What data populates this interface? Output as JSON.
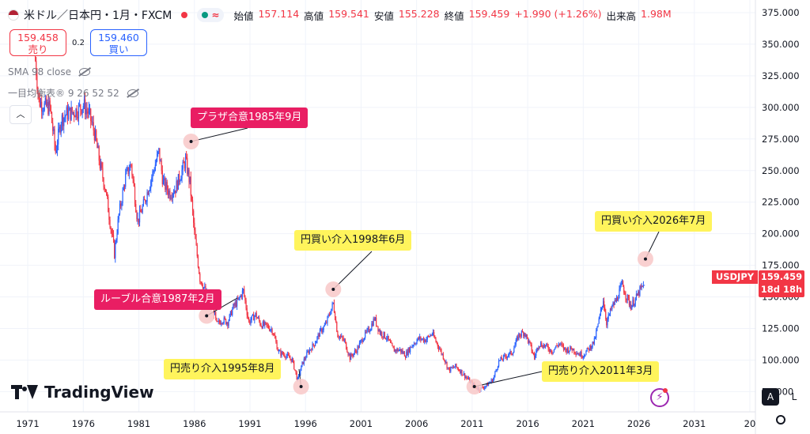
{
  "header": {
    "symbol": "米ドル／日本円・1月・FXCM",
    "ohlc": [
      {
        "label": "始値",
        "value": "157.114"
      },
      {
        "label": "高値",
        "value": "159.541"
      },
      {
        "label": "安値",
        "value": "155.228"
      },
      {
        "label": "終値",
        "value": "159.459"
      }
    ],
    "change": "+1.990 (+1.26%)",
    "volume_label": "出来高",
    "volume_value": "1.98M"
  },
  "trade": {
    "sell_price": "159.458",
    "sell_label": "売り",
    "spread": "0.2",
    "buy_price": "159.460",
    "buy_label": "買い"
  },
  "indicators": {
    "sma": "SMA 98 close",
    "ichimoku": "一目均衡表® 9 26 52 52"
  },
  "price_tag": {
    "symbol": "USDJPY",
    "price": "159.459",
    "countdown": "18d 18h"
  },
  "axis_buttons": {
    "auto": "A",
    "log": "L"
  },
  "logo": {
    "text": "TradingView"
  },
  "colors": {
    "up": "#2962ff",
    "down": "#f23645",
    "pink": "#e91e63",
    "yellow": "#fff45c",
    "grid": "#f0f3fa"
  },
  "chart_data": {
    "type": "line",
    "series": [
      {
        "values": [
          [
            1971.6,
            345.0
          ],
          [
            1972.0,
            305.0
          ],
          [
            1972.5,
            301.0
          ],
          [
            1973.0,
            300.0
          ],
          [
            1973.5,
            265.0
          ],
          [
            1974.0,
            290.0
          ],
          [
            1974.5,
            295.0
          ],
          [
            1975.0,
            296.0
          ],
          [
            1975.5,
            298.0
          ],
          [
            1976.0,
            302.0
          ],
          [
            1976.5,
            295.0
          ],
          [
            1977.0,
            280.0
          ],
          [
            1977.5,
            255.0
          ],
          [
            1978.0,
            235.0
          ],
          [
            1978.8,
            185.0
          ],
          [
            1979.2,
            215.0
          ],
          [
            1979.8,
            245.0
          ],
          [
            1980.3,
            255.0
          ],
          [
            1980.9,
            210.0
          ],
          [
            1981.5,
            225.0
          ],
          [
            1982.0,
            240.0
          ],
          [
            1982.8,
            265.0
          ],
          [
            1983.2,
            240.0
          ],
          [
            1983.8,
            232.0
          ],
          [
            1984.3,
            236.0
          ],
          [
            1984.8,
            248.0
          ],
          [
            1985.2,
            258.0
          ],
          [
            1985.6,
            240.0
          ],
          [
            1986.0,
            200.0
          ],
          [
            1986.5,
            165.0
          ],
          [
            1987.1,
            152.0
          ],
          [
            1987.6,
            145.0
          ],
          [
            1988.0,
            128.0
          ],
          [
            1988.5,
            132.0
          ],
          [
            1989.0,
            130.0
          ],
          [
            1989.5,
            142.0
          ],
          [
            1990.0,
            148.0
          ],
          [
            1990.4,
            155.0
          ],
          [
            1990.9,
            130.0
          ],
          [
            1991.5,
            136.0
          ],
          [
            1992.0,
            128.0
          ],
          [
            1992.5,
            127.0
          ],
          [
            1993.0,
            124.0
          ],
          [
            1993.6,
            106.0
          ],
          [
            1994.2,
            104.0
          ],
          [
            1994.8,
            100.0
          ],
          [
            1995.3,
            84.0
          ],
          [
            1995.7,
            97.0
          ],
          [
            1996.2,
            106.0
          ],
          [
            1996.8,
            113.0
          ],
          [
            1997.3,
            122.0
          ],
          [
            1997.8,
            128.0
          ],
          [
            1998.5,
            145.0
          ],
          [
            1998.9,
            120.0
          ],
          [
            1999.5,
            115.0
          ],
          [
            2000.0,
            102.0
          ],
          [
            2000.6,
            108.0
          ],
          [
            2001.2,
            118.0
          ],
          [
            2001.8,
            125.0
          ],
          [
            2002.2,
            133.0
          ],
          [
            2002.7,
            122.0
          ],
          [
            2003.3,
            118.0
          ],
          [
            2003.9,
            108.0
          ],
          [
            2004.5,
            108.0
          ],
          [
            2005.0,
            104.0
          ],
          [
            2005.6,
            112.0
          ],
          [
            2006.2,
            117.0
          ],
          [
            2006.8,
            116.0
          ],
          [
            2007.4,
            121.0
          ],
          [
            2007.9,
            112.0
          ],
          [
            2008.4,
            103.0
          ],
          [
            2008.9,
            92.0
          ],
          [
            2009.5,
            95.0
          ],
          [
            2010.0,
            91.0
          ],
          [
            2010.6,
            85.0
          ],
          [
            2011.2,
            79.0
          ],
          [
            2011.7,
            77.0
          ],
          [
            2012.3,
            80.0
          ],
          [
            2012.9,
            85.0
          ],
          [
            2013.4,
            99.0
          ],
          [
            2014.0,
            103.0
          ],
          [
            2014.6,
            106.0
          ],
          [
            2015.2,
            120.0
          ],
          [
            2015.7,
            122.0
          ],
          [
            2016.2,
            112.0
          ],
          [
            2016.6,
            102.0
          ],
          [
            2017.0,
            113.0
          ],
          [
            2017.6,
            111.0
          ],
          [
            2018.2,
            107.0
          ],
          [
            2018.8,
            113.0
          ],
          [
            2019.4,
            108.0
          ],
          [
            2020.0,
            109.0
          ],
          [
            2020.6,
            105.0
          ],
          [
            2021.0,
            104.0
          ],
          [
            2021.6,
            110.0
          ],
          [
            2022.0,
            115.0
          ],
          [
            2022.5,
            135.0
          ],
          [
            2022.8,
            148.0
          ],
          [
            2023.1,
            130.0
          ],
          [
            2023.6,
            142.0
          ],
          [
            2024.0,
            148.0
          ],
          [
            2024.5,
            160.0
          ],
          [
            2024.9,
            150.0
          ],
          [
            2025.3,
            143.0
          ],
          [
            2025.7,
            148.0
          ],
          [
            2026.1,
            155.0
          ],
          [
            2026.5,
            159.459
          ]
        ]
      }
    ],
    "x_ticks": [
      "1971",
      "1976",
      "1981",
      "1986",
      "1991",
      "1996",
      "2001",
      "2006",
      "2011",
      "2016",
      "2021",
      "2026",
      "2031",
      "20"
    ],
    "y_ticks": [
      "375.000",
      "350.000",
      "325.000",
      "300.000",
      "275.000",
      "250.000",
      "225.000",
      "200.000",
      "175.000",
      "150.000",
      "125.000",
      "100.000",
      "75.000"
    ],
    "xlim": [
      1968.5,
      2036.5
    ],
    "ylim": [
      59.0,
      385.0
    ],
    "grid": true,
    "annotations": [
      {
        "text": "プラザ合意1985年9月",
        "style": "pink",
        "target": [
          1985.7,
          273.0
        ]
      },
      {
        "text": "ルーブル合意1987年2月",
        "style": "pink",
        "target": [
          1987.1,
          135.0
        ]
      },
      {
        "text": "円売り介入1995年8月",
        "style": "yellow",
        "target": [
          1995.6,
          79.0
        ]
      },
      {
        "text": "円買い介入1998年6月",
        "style": "yellow",
        "target": [
          1998.5,
          156.0
        ]
      },
      {
        "text": "円売り介入2011年3月",
        "style": "yellow",
        "target": [
          2011.2,
          79.0
        ]
      },
      {
        "text": "円買い介入2026年7月",
        "style": "yellow",
        "target": [
          2026.6,
          180.0
        ]
      }
    ]
  }
}
